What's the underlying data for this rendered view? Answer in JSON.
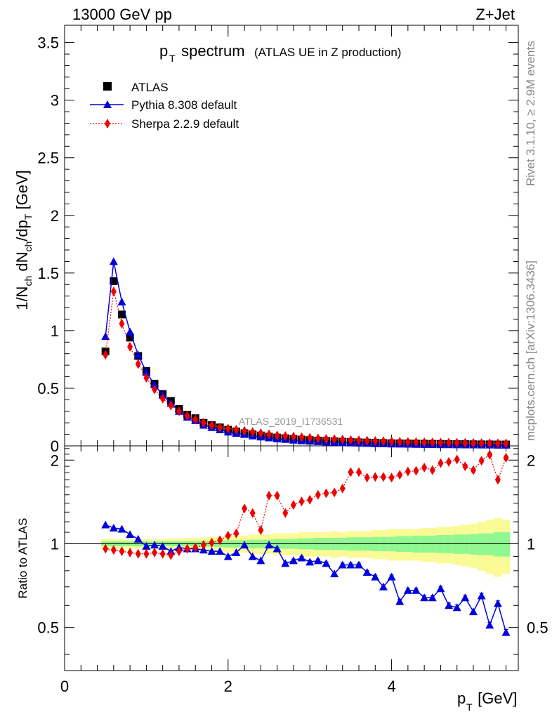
{
  "header": {
    "energy_label": "13000 GeV pp",
    "process_label": "Z+Jet"
  },
  "side_labels": {
    "rivet": "Rivet 3.1.10, ≥ 2.9M events",
    "mcplots": "mcplots.cern.ch [arXiv:1306.3436]"
  },
  "colors": {
    "atlas": "#000000",
    "pythia": "#0000dd",
    "sherpa": "#ee0000",
    "band_inner": "#90f890",
    "band_outer": "#fafa96"
  },
  "chart_data": [
    {
      "type": "scatter",
      "panel": "main",
      "title": "p_T spectrum",
      "title_main": "p",
      "title_sub": "T",
      "title_tail": " spectrum",
      "subtitle": "(ATLAS UE in Z production)",
      "ylabel": "1/N_ch dN_ch/dp_T [GeV]",
      "ylim": [
        0,
        3.65
      ],
      "xlim": [
        0,
        5.55
      ],
      "yticks": [
        0,
        0.5,
        1,
        1.5,
        2,
        2.5,
        3,
        3.5
      ],
      "yticklabels": [
        "0",
        "0.5",
        "1",
        "1.5",
        "2",
        "2.5",
        "3",
        "3.5"
      ],
      "watermark": "ATLAS_2019_I1736531",
      "legend_position": "top-left",
      "x": [
        0.5,
        0.6,
        0.7,
        0.8,
        0.9,
        1.0,
        1.1,
        1.2,
        1.3,
        1.4,
        1.5,
        1.6,
        1.7,
        1.8,
        1.9,
        2.0,
        2.1,
        2.2,
        2.3,
        2.4,
        2.5,
        2.6,
        2.7,
        2.8,
        2.9,
        3.0,
        3.1,
        3.2,
        3.3,
        3.4,
        3.5,
        3.6,
        3.7,
        3.8,
        3.9,
        4.0,
        4.1,
        4.2,
        4.3,
        4.4,
        4.5,
        4.6,
        4.7,
        4.8,
        4.9,
        5.0,
        5.1,
        5.2,
        5.3,
        5.4
      ],
      "series": [
        {
          "name": "ATLAS",
          "marker": "square",
          "values": [
            0.82,
            1.43,
            1.14,
            0.94,
            0.78,
            0.65,
            0.54,
            0.45,
            0.39,
            0.32,
            0.27,
            0.24,
            0.2,
            0.18,
            0.16,
            0.14,
            0.125,
            0.11,
            0.1,
            0.09,
            0.08,
            0.072,
            0.066,
            0.06,
            0.055,
            0.05,
            0.046,
            0.042,
            0.039,
            0.036,
            0.033,
            0.031,
            0.029,
            0.027,
            0.025,
            0.023,
            0.022,
            0.021,
            0.02,
            0.019,
            0.018,
            0.017,
            0.016,
            0.015,
            0.015,
            0.014,
            0.013,
            0.013,
            0.012,
            0.012
          ]
        },
        {
          "name": "Pythia 8.308 default",
          "marker": "triangle",
          "values": [
            0.95,
            1.6,
            1.25,
            0.99,
            0.79,
            0.64,
            0.53,
            0.44,
            0.37,
            0.3,
            0.25,
            0.22,
            0.18,
            0.16,
            0.14,
            0.12,
            0.11,
            0.1,
            0.087,
            0.078,
            0.07,
            0.062,
            0.056,
            0.05,
            0.045,
            0.041,
            0.037,
            0.034,
            0.031,
            0.028,
            0.026,
            0.024,
            0.022,
            0.02,
            0.019,
            0.017,
            0.016,
            0.015,
            0.014,
            0.013,
            0.012,
            0.011,
            0.011,
            0.01,
            0.009,
            0.009,
            0.008,
            0.008,
            0.007,
            0.007
          ]
        },
        {
          "name": "Sherpa 2.2.9 default",
          "marker": "diamond",
          "values": [
            0.79,
            1.34,
            1.06,
            0.86,
            0.71,
            0.59,
            0.49,
            0.41,
            0.35,
            0.3,
            0.26,
            0.23,
            0.2,
            0.18,
            0.16,
            0.15,
            0.14,
            0.13,
            0.12,
            0.11,
            0.1,
            0.09,
            0.085,
            0.08,
            0.075,
            0.07,
            0.065,
            0.06,
            0.058,
            0.055,
            0.05,
            0.048,
            0.045,
            0.043,
            0.04,
            0.038,
            0.036,
            0.034,
            0.033,
            0.031,
            0.03,
            0.029,
            0.028,
            0.027,
            0.026,
            0.025,
            0.024,
            0.023,
            0.022,
            0.021
          ]
        }
      ]
    },
    {
      "type": "scatter",
      "panel": "ratio",
      "ylabel": "Ratio to ATLAS",
      "xlabel": "p_T [GeV]",
      "xlabel_main": "p",
      "xlabel_sub": "T",
      "xlabel_tail": " [GeV]",
      "ylim": [
        0.35,
        2.25
      ],
      "xlim": [
        0,
        5.55
      ],
      "yticks": [
        0.5,
        1,
        2
      ],
      "yticklabels": [
        "0.5",
        "1",
        "2"
      ],
      "xticks": [
        0,
        2,
        4
      ],
      "xticklabels": [
        "0",
        "2",
        "4"
      ],
      "reference_line": 1,
      "x": [
        0.5,
        0.6,
        0.7,
        0.8,
        0.9,
        1.0,
        1.1,
        1.2,
        1.3,
        1.4,
        1.5,
        1.6,
        1.7,
        1.8,
        1.9,
        2.0,
        2.1,
        2.2,
        2.3,
        2.4,
        2.5,
        2.6,
        2.7,
        2.8,
        2.9,
        3.0,
        3.1,
        3.2,
        3.3,
        3.4,
        3.5,
        3.6,
        3.7,
        3.8,
        3.9,
        4.0,
        4.1,
        4.2,
        4.3,
        4.4,
        4.5,
        4.6,
        4.7,
        4.8,
        4.9,
        5.0,
        5.1,
        5.2,
        5.3,
        5.4
      ],
      "band_inner": [
        0.02,
        0.02,
        0.02,
        0.02,
        0.02,
        0.02,
        0.02,
        0.02,
        0.02,
        0.02,
        0.02,
        0.02,
        0.025,
        0.025,
        0.025,
        0.03,
        0.03,
        0.03,
        0.035,
        0.035,
        0.035,
        0.04,
        0.04,
        0.04,
        0.045,
        0.045,
        0.05,
        0.05,
        0.05,
        0.05,
        0.055,
        0.055,
        0.055,
        0.06,
        0.06,
        0.06,
        0.065,
        0.065,
        0.07,
        0.07,
        0.07,
        0.075,
        0.075,
        0.08,
        0.08,
        0.085,
        0.09,
        0.09,
        0.1,
        0.1
      ],
      "band_outer": [
        0.04,
        0.04,
        0.04,
        0.04,
        0.04,
        0.04,
        0.04,
        0.04,
        0.045,
        0.045,
        0.05,
        0.05,
        0.055,
        0.06,
        0.06,
        0.07,
        0.07,
        0.07,
        0.08,
        0.08,
        0.08,
        0.09,
        0.09,
        0.09,
        0.1,
        0.1,
        0.1,
        0.1,
        0.11,
        0.1,
        0.11,
        0.11,
        0.11,
        0.12,
        0.12,
        0.13,
        0.13,
        0.13,
        0.13,
        0.14,
        0.14,
        0.15,
        0.15,
        0.16,
        0.17,
        0.18,
        0.2,
        0.22,
        0.24,
        0.22
      ],
      "series": [
        {
          "name": "Pythia 8.308 default",
          "marker": "triangle",
          "values": [
            1.17,
            1.14,
            1.13,
            1.08,
            1.04,
            0.98,
            0.99,
            0.98,
            0.94,
            0.97,
            0.96,
            0.96,
            0.95,
            0.94,
            0.94,
            0.9,
            0.93,
            0.99,
            0.9,
            0.87,
            0.99,
            0.96,
            0.85,
            0.87,
            0.89,
            0.86,
            0.87,
            0.85,
            0.78,
            0.84,
            0.84,
            0.84,
            0.79,
            0.76,
            0.7,
            0.76,
            0.62,
            0.68,
            0.68,
            0.64,
            0.64,
            0.69,
            0.6,
            0.59,
            0.64,
            0.57,
            0.65,
            0.51,
            0.61,
            0.48
          ]
        },
        {
          "name": "Sherpa 2.2.9 default",
          "marker": "diamond",
          "values": [
            0.96,
            0.95,
            0.94,
            0.93,
            0.92,
            0.92,
            0.93,
            0.92,
            0.91,
            0.94,
            0.96,
            0.97,
            0.99,
            1.01,
            1.03,
            1.07,
            1.09,
            1.34,
            1.29,
            1.12,
            1.49,
            1.49,
            1.29,
            1.38,
            1.42,
            1.44,
            1.5,
            1.52,
            1.53,
            1.58,
            1.81,
            1.81,
            1.73,
            1.74,
            1.74,
            1.73,
            1.77,
            1.82,
            1.83,
            1.88,
            1.84,
            1.95,
            1.97,
            2.01,
            1.9,
            1.84,
            1.99,
            2.09,
            1.7,
            2.04
          ]
        }
      ]
    }
  ]
}
